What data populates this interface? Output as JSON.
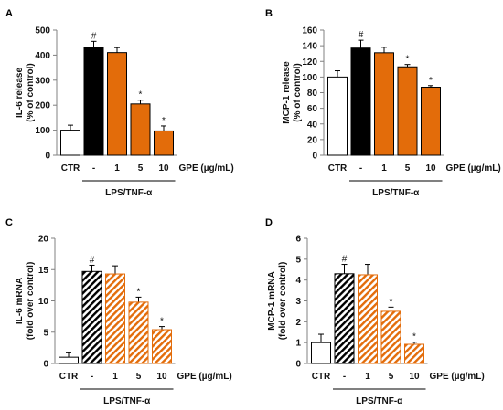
{
  "colors": {
    "ctr": "#ffffff",
    "lps": "#000000",
    "gpe": "#E36C0A",
    "stroke": "#000000"
  },
  "chart_data": [
    {
      "panel": "A",
      "type": "bar",
      "pattern": "solid",
      "categories": [
        "CTR",
        "-",
        "1",
        "5",
        "10"
      ],
      "values": [
        100,
        430,
        410,
        205,
        97
      ],
      "errors": [
        20,
        25,
        20,
        15,
        20
      ],
      "markers": [
        "",
        "#",
        "",
        "*",
        "*"
      ],
      "ylabel_lines": [
        "IL-6 release",
        "(% of control)"
      ],
      "ylim": [
        0,
        500
      ],
      "yticks": [
        0,
        100,
        200,
        300,
        400,
        500
      ],
      "unit_label": "GPE (µg/mL)",
      "group_label": "LPS/TNF-α"
    },
    {
      "panel": "B",
      "type": "bar",
      "pattern": "solid",
      "categories": [
        "CTR",
        "-",
        "1",
        "5",
        "10"
      ],
      "values": [
        100,
        137,
        131,
        113,
        87
      ],
      "errors": [
        8,
        10,
        7,
        3,
        2
      ],
      "markers": [
        "",
        "#",
        "",
        "*",
        "*"
      ],
      "ylabel_lines": [
        "MCP-1 release",
        "(% of control)"
      ],
      "ylim": [
        0,
        160
      ],
      "yticks": [
        0,
        20,
        40,
        60,
        80,
        100,
        120,
        140,
        160
      ],
      "unit_label": "GPE (µg/mL)",
      "group_label": "LPS/TNF-α"
    },
    {
      "panel": "C",
      "type": "bar",
      "pattern": "hatched",
      "categories": [
        "CTR",
        "-",
        "1",
        "5",
        "10"
      ],
      "values": [
        1.0,
        14.7,
        14.3,
        9.8,
        5.4
      ],
      "errors": [
        0.7,
        1.0,
        1.3,
        0.8,
        0.5
      ],
      "markers": [
        "",
        "#",
        "",
        "*",
        "*"
      ],
      "ylabel_lines": [
        "IL-6 mRNA",
        "(fold over control)"
      ],
      "ylim": [
        0,
        20
      ],
      "yticks": [
        0,
        5,
        10,
        15,
        20
      ],
      "unit_label": "GPE (µg/mL)",
      "group_label": "LPS/TNF-α"
    },
    {
      "panel": "D",
      "type": "bar",
      "pattern": "hatched",
      "categories": [
        "CTR",
        "-",
        "1",
        "5",
        "10"
      ],
      "values": [
        1.0,
        4.3,
        4.25,
        2.5,
        0.92
      ],
      "errors": [
        0.4,
        0.45,
        0.5,
        0.2,
        0.1
      ],
      "markers": [
        "",
        "#",
        "",
        "*",
        "*"
      ],
      "ylabel_lines": [
        "MCP-1 mRNA",
        "(fold over control)"
      ],
      "ylim": [
        0,
        6
      ],
      "yticks": [
        0,
        1,
        2,
        3,
        4,
        5,
        6
      ],
      "unit_label": "GPE (µg/mL)",
      "group_label": "LPS/TNF-α"
    }
  ]
}
